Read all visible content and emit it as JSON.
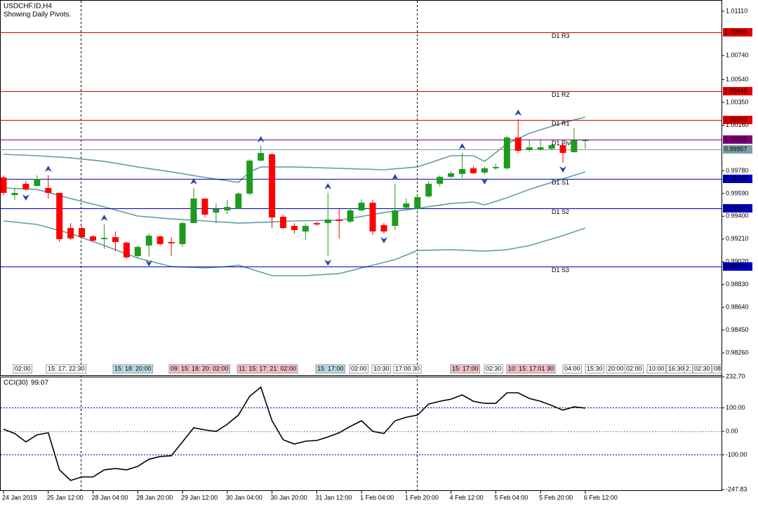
{
  "chart_data": [
    {
      "type": "candlestick",
      "title": "USDCHF.ID,H4",
      "subtitle": "Showing Daily Pivots.",
      "categories": [
        "24 Jan 2019",
        null,
        null,
        null,
        "25 Jan 12:00",
        null,
        null,
        null,
        "28 Jan 04:00",
        null,
        null,
        null,
        "28 Jan 20:00",
        null,
        null,
        null,
        "29 Jan 12:00",
        null,
        null,
        null,
        "30 Jan 04:00",
        null,
        null,
        null,
        "30 Jan 20:00",
        null,
        null,
        null,
        "31 Jan 12:00",
        null,
        null,
        null,
        "1 Feb 04:00",
        null,
        null,
        null,
        "1 Feb 20:00",
        null,
        null,
        null,
        "4 Feb 12:00",
        null,
        null,
        null,
        "5 Feb 04:00",
        null,
        null,
        null,
        "5 Feb 20:00",
        null,
        null,
        null,
        "6 Feb 12:00"
      ],
      "open": [
        0.99724,
        0.99577,
        0.99671,
        0.99653,
        0.99636,
        0.99595,
        0.99302,
        0.99302,
        0.99232,
        0.99209,
        0.99226,
        0.9918,
        0.99068,
        0.99156,
        0.99232,
        0.99185,
        0.99168,
        0.99343,
        0.99548,
        0.99431,
        0.99449,
        0.9946,
        0.99589,
        0.99864,
        0.99917,
        0.99396,
        0.9932,
        0.99273,
        0.99343,
        0.99343,
        0.99373,
        0.99355,
        0.99449,
        0.99513,
        0.99326,
        0.9932,
        0.99472,
        0.9946,
        0.99566,
        0.99671,
        0.99729,
        0.99753,
        0.998,
        0.99765,
        0.998,
        0.998,
        1.00057,
        0.99952,
        0.99958,
        0.99963,
        0.99993,
        0.99934,
        1.00028
      ],
      "high": [
        0.99741,
        0.99636,
        0.99694,
        0.99741,
        0.99741,
        0.99595,
        0.99343,
        0.9932,
        0.99244,
        0.99332,
        0.99273,
        0.99191,
        0.99156,
        0.99256,
        0.99238,
        0.99226,
        0.99355,
        0.99636,
        0.99548,
        0.99507,
        0.99536,
        0.99601,
        0.99876,
        0.99987,
        0.99928,
        0.99414,
        0.99343,
        0.99343,
        0.99355,
        0.99595,
        0.99472,
        0.99472,
        0.99542,
        0.99536,
        0.99343,
        0.99671,
        0.99548,
        0.99577,
        0.99694,
        0.99741,
        0.99776,
        0.99928,
        0.99817,
        0.99817,
        0.99835,
        1.00069,
        1.00209,
        1.00034,
        1.00045,
        1.00004,
        1.00004,
        1.00133,
        1.00045
      ],
      "low": [
        0.99577,
        0.99536,
        0.99612,
        0.99653,
        0.99548,
        0.99185,
        0.99203,
        0.99215,
        0.99185,
        0.99127,
        0.99109,
        0.99045,
        0.99057,
        0.99063,
        0.99156,
        0.99068,
        0.99144,
        0.99343,
        0.9939,
        0.99343,
        0.99419,
        0.9946,
        0.99577,
        0.99858,
        0.99302,
        0.99291,
        0.99256,
        0.99203,
        0.9932,
        0.99068,
        0.99215,
        0.99343,
        0.99437,
        0.99244,
        0.99256,
        0.99285,
        0.99449,
        0.99449,
        0.99554,
        0.99648,
        0.99718,
        0.99718,
        0.99753,
        0.99747,
        0.99788,
        0.99788,
        0.99928,
        0.9994,
        0.99946,
        0.99952,
        0.99846,
        0.99934,
        0.99963
      ],
      "close": [
        0.99595,
        0.99595,
        0.99624,
        0.99712,
        0.99595,
        0.99209,
        0.99215,
        0.99226,
        0.99197,
        0.9922,
        0.99185,
        0.99057,
        0.99144,
        0.99238,
        0.99168,
        0.99174,
        0.99343,
        0.99548,
        0.99414,
        0.9946,
        0.99478,
        0.99589,
        0.99864,
        0.99928,
        0.9939,
        0.99302,
        0.99285,
        0.9932,
        0.99332,
        0.99373,
        0.99361,
        0.99449,
        0.99513,
        0.99273,
        0.99273,
        0.99449,
        0.99507,
        0.9956,
        0.99671,
        0.99729,
        0.99759,
        0.99794,
        0.99759,
        0.998,
        0.99811,
        1.00057,
        0.99946,
        0.99975,
        0.99975,
        0.99993,
        0.99928,
        1.00034,
        1.00034
      ],
      "up_color": "#1f9a1f",
      "down_color": "#ff0000",
      "bands": [
        {
          "color": "#5f9ea0",
          "x": [
            0,
            3,
            6,
            9,
            12,
            15,
            18,
            21,
            22,
            23,
            26,
            30,
            34,
            37,
            40,
            42,
            43,
            45,
            47,
            50,
            52
          ],
          "values": [
            0.99917,
            0.99905,
            0.99887,
            0.99858,
            0.99811,
            0.9977,
            0.99724,
            0.99683,
            0.9977,
            0.99811,
            0.99811,
            0.998,
            0.99788,
            0.99811,
            0.99905,
            0.99905,
            0.99858,
            1.00004,
            1.00092,
            1.0018,
            1.00227
          ]
        },
        {
          "color": "#5f9ea0",
          "x": [
            0,
            3,
            6,
            9,
            12,
            15,
            18,
            21,
            23,
            26,
            30,
            34,
            37,
            40,
            42,
            43,
            45,
            47,
            50,
            52
          ],
          "values": [
            0.99636,
            0.99624,
            0.99548,
            0.99478,
            0.99402,
            0.99378,
            0.99361,
            0.99343,
            0.99349,
            0.99361,
            0.99367,
            0.99431,
            0.99466,
            0.99507,
            0.99519,
            0.99495,
            0.99554,
            0.99624,
            0.99712,
            0.9977
          ]
        },
        {
          "color": "#5f9ea0",
          "x": [
            0,
            3,
            6,
            9,
            12,
            15,
            18,
            20,
            21,
            23,
            24,
            27,
            30,
            32,
            33,
            35,
            37,
            40,
            43,
            45,
            47,
            50,
            52
          ],
          "values": [
            0.99361,
            0.99332,
            0.99256,
            0.99156,
            0.99051,
            0.98981,
            0.98969,
            0.98981,
            0.98992,
            0.98934,
            0.98905,
            0.98905,
            0.98922,
            0.98969,
            0.98992,
            0.99039,
            0.99115,
            0.99121,
            0.99109,
            0.99121,
            0.99156,
            0.99238,
            0.99302
          ]
        }
      ],
      "fractals_up": [
        4,
        9,
        17,
        23,
        29,
        35,
        41,
        46
      ],
      "fractals_down": [
        2,
        13,
        29,
        34,
        43,
        50
      ],
      "fractal_color": "#2a3fa8",
      "pivots": [
        {
          "name": "D1 R3",
          "value": 1.00935,
          "label": "1.00935",
          "color": "#e00000"
        },
        {
          "name": "D1 R2",
          "value": 1.00446,
          "label": "1.00446",
          "color": "#e00000"
        },
        {
          "name": "D1 R1",
          "value": 1.00203,
          "label": "1.00203",
          "color": "#e00000"
        },
        {
          "name": "D1 Pivot",
          "value": 1.00038,
          "label": "1.00038",
          "color": "#800080"
        },
        {
          "name": "D1 S1",
          "value": 0.99714,
          "label": "0.99714",
          "color": "#0000c0"
        },
        {
          "name": "D1 S2",
          "value": 0.99468,
          "label": "0.99468",
          "color": "#0000c0"
        },
        {
          "name": "D1 S3",
          "value": 0.98979,
          "label": "0.98979",
          "color": "#0000c0"
        }
      ],
      "last_price": {
        "value": 0.99957,
        "label": "0.99957",
        "color": "#7a9ea6"
      },
      "ylim": [
        0.98074,
        1.01204
      ],
      "yticks": [
        {
          "value": 1.0111,
          "label": "1.01110"
        },
        {
          "value": 1.0074,
          "label": "1.00740"
        },
        {
          "value": 1.0054,
          "label": "1.00540"
        },
        {
          "value": 1.0035,
          "label": "1.00350"
        },
        {
          "value": 1.0016,
          "label": "1.00160"
        },
        {
          "value": 0.9978,
          "label": "0.99780"
        },
        {
          "value": 0.9959,
          "label": "0.99590"
        },
        {
          "value": 0.994,
          "label": "0.99400"
        },
        {
          "value": 0.9921,
          "label": "0.99210"
        },
        {
          "value": 0.9902,
          "label": "0.99020"
        },
        {
          "value": 0.9883,
          "label": "0.98830"
        },
        {
          "value": 0.9864,
          "label": "0.98640"
        },
        {
          "value": 0.9845,
          "label": "0.98450"
        },
        {
          "value": 0.9826,
          "label": "0.98260"
        }
      ],
      "session_labels": [
        {
          "text": "02:00",
          "color": "#ffffff"
        },
        {
          "text": "15: 17: 22:30",
          "color": "#ffffff"
        },
        {
          "text": "15: 18: 20:00",
          "color": "#b8dde8"
        },
        {
          "text": "09: 15: 18: 20: 02:00",
          "color": "#f5c0c6"
        },
        {
          "text": "11: 15: 17: 21: 02:00",
          "color": "#f5c0c6"
        },
        {
          "text": "15: 17:00",
          "color": "#b8dde8"
        },
        {
          "text": "02:00",
          "color": "#ffffff"
        },
        {
          "text": "10:30",
          "color": "#ffffff"
        },
        {
          "text": "17:00 30",
          "color": "#ffffff"
        },
        {
          "text": "15: 17:00",
          "color": "#f5c0c6"
        },
        {
          "text": "02:30",
          "color": "#ffffff"
        },
        {
          "text": "10: 15: 17:01 30",
          "color": "#f5c0c6"
        },
        {
          "text": "04:00",
          "color": "#ffffff"
        },
        {
          "text": "15:30",
          "color": "#ffffff"
        },
        {
          "text": "20:00",
          "color": "#ffffff"
        },
        {
          "text": "02:00",
          "color": "#ffffff"
        },
        {
          "text": "10:00",
          "color": "#ffffff"
        },
        {
          "text": "16:30",
          "color": "#ffffff"
        },
        {
          "text": "2:",
          "color": "#ffffff"
        },
        {
          "text": "02:30",
          "color": "#ffffff"
        },
        {
          "text": "08:",
          "color": "#ffffff"
        }
      ]
    },
    {
      "type": "line",
      "title": "CCI(30)",
      "series": [
        {
          "color": "#000000",
          "values": [
            9,
            -9,
            -45,
            -15,
            -6,
            -164,
            -209,
            -194,
            -194,
            -164,
            -158,
            -164,
            -149,
            -119,
            -107,
            -104,
            -45,
            15,
            6,
            0,
            30,
            69,
            149,
            188,
            45,
            -36,
            -54,
            -42,
            -39,
            -24,
            -6,
            21,
            45,
            0,
            -9,
            45,
            60,
            69,
            116,
            128,
            137,
            155,
            128,
            119,
            119,
            164,
            164,
            140,
            128,
            110,
            90,
            104,
            99.07
          ]
        }
      ],
      "ylim": [
        -247.83,
        232.7
      ],
      "yticks": [
        {
          "value": 232.7,
          "label": "232.70"
        },
        {
          "value": 100,
          "label": "100.00"
        },
        {
          "value": 0,
          "label": "0.00"
        },
        {
          "value": -100,
          "label": "-100.00"
        },
        {
          "value": -247.83,
          "label": "-247.83"
        }
      ],
      "levels": [
        100,
        0,
        -100
      ],
      "level_color": "#000080"
    }
  ]
}
